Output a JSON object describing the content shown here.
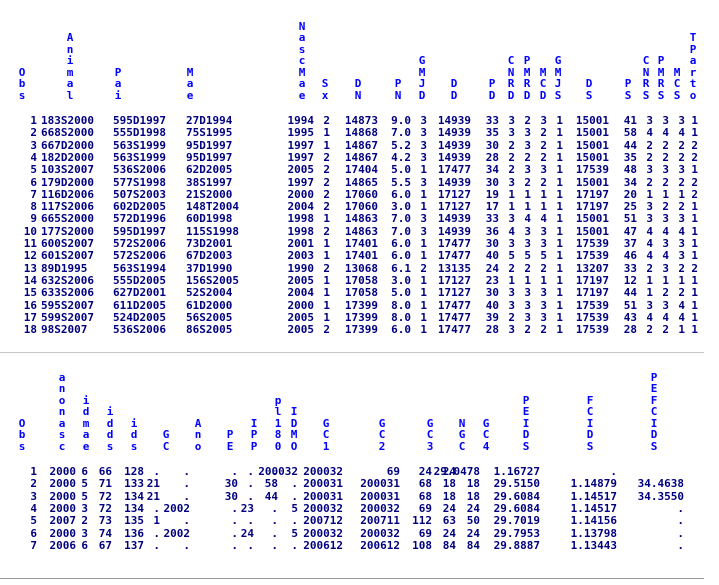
{
  "table1": {
    "headers": [
      "Obs",
      "Animal",
      "Pai",
      "Mae",
      "NascMae",
      "Sx",
      "DN",
      "PN",
      "GMJD",
      "DD",
      "PD",
      "CNRD",
      "PMRD",
      "MCD",
      "GMJS",
      "DS",
      "PS",
      "CNRS",
      "PMRS",
      "MCS",
      "TParto"
    ],
    "rows": [
      [
        "1",
        "183S2000",
        "595D1997",
        "27D1994",
        "1994",
        "2",
        "14873",
        "9.0",
        "3",
        "14939",
        "33",
        "3",
        "2",
        "3",
        "1",
        "15001",
        "41",
        "3",
        "3",
        "3",
        "1"
      ],
      [
        "2",
        "668S2000",
        "555D1998",
        "75S1995",
        "1995",
        "1",
        "14868",
        "7.0",
        "3",
        "14939",
        "35",
        "3",
        "3",
        "2",
        "1",
        "15001",
        "58",
        "4",
        "4",
        "4",
        "1"
      ],
      [
        "3",
        "667D2000",
        "563S1999",
        "95D1997",
        "1997",
        "1",
        "14867",
        "5.2",
        "3",
        "14939",
        "30",
        "2",
        "3",
        "2",
        "1",
        "15001",
        "44",
        "2",
        "2",
        "2",
        "2"
      ],
      [
        "4",
        "182D2000",
        "563S1999",
        "95D1997",
        "1997",
        "2",
        "14867",
        "4.2",
        "3",
        "14939",
        "28",
        "2",
        "2",
        "2",
        "1",
        "15001",
        "35",
        "2",
        "2",
        "2",
        "2"
      ],
      [
        "5",
        "103S2007",
        "536S2006",
        "62D2005",
        "2005",
        "2",
        "17404",
        "5.0",
        "1",
        "17477",
        "34",
        "2",
        "3",
        "3",
        "1",
        "17539",
        "48",
        "3",
        "3",
        "3",
        "1"
      ],
      [
        "6",
        "179D2000",
        "577S1998",
        "38S1997",
        "1997",
        "2",
        "14865",
        "5.5",
        "3",
        "14939",
        "30",
        "3",
        "2",
        "2",
        "1",
        "15001",
        "34",
        "2",
        "2",
        "2",
        "2"
      ],
      [
        "7",
        "116D2006",
        "507S2003",
        "21S2000",
        "2000",
        "2",
        "17060",
        "6.0",
        "1",
        "17127",
        "19",
        "1",
        "1",
        "1",
        "1",
        "17197",
        "20",
        "1",
        "1",
        "1",
        "2"
      ],
      [
        "8",
        "117S2006",
        "602D2005",
        "148T2004",
        "2004",
        "2",
        "17060",
        "3.0",
        "1",
        "17127",
        "17",
        "1",
        "1",
        "1",
        "1",
        "17197",
        "25",
        "3",
        "2",
        "2",
        "1"
      ],
      [
        "9",
        "665S2000",
        "572D1996",
        "60D1998",
        "1998",
        "1",
        "14863",
        "7.0",
        "3",
        "14939",
        "33",
        "3",
        "4",
        "4",
        "1",
        "15001",
        "51",
        "3",
        "3",
        "3",
        "1"
      ],
      [
        "10",
        "177S2000",
        "595D1997",
        "115S1998",
        "1998",
        "2",
        "14863",
        "7.0",
        "3",
        "14939",
        "36",
        "4",
        "3",
        "3",
        "1",
        "15001",
        "47",
        "4",
        "4",
        "4",
        "1"
      ],
      [
        "11",
        "600S2007",
        "572S2006",
        "73D2001",
        "2001",
        "1",
        "17401",
        "6.0",
        "1",
        "17477",
        "30",
        "3",
        "3",
        "3",
        "1",
        "17539",
        "37",
        "4",
        "3",
        "3",
        "1"
      ],
      [
        "12",
        "601S2007",
        "572S2006",
        "67D2003",
        "2003",
        "1",
        "17401",
        "6.0",
        "1",
        "17477",
        "40",
        "5",
        "5",
        "5",
        "1",
        "17539",
        "46",
        "4",
        "4",
        "3",
        "1"
      ],
      [
        "13",
        "89D1995",
        "563S1994",
        "37D1990",
        "1990",
        "2",
        "13068",
        "6.1",
        "2",
        "13135",
        "24",
        "2",
        "2",
        "2",
        "1",
        "13207",
        "33",
        "2",
        "3",
        "2",
        "2"
      ],
      [
        "14",
        "632S2006",
        "555D2005",
        "156S2005",
        "2005",
        "1",
        "17058",
        "3.0",
        "1",
        "17127",
        "23",
        "1",
        "1",
        "1",
        "1",
        "17197",
        "12",
        "1",
        "1",
        "1",
        "1"
      ],
      [
        "15",
        "633S2006",
        "627D2001",
        "52S2004",
        "2004",
        "1",
        "17058",
        "5.0",
        "1",
        "17127",
        "30",
        "3",
        "3",
        "3",
        "1",
        "17197",
        "44",
        "1",
        "2",
        "2",
        "1"
      ],
      [
        "16",
        "595S2007",
        "611D2005",
        "61D2000",
        "2000",
        "1",
        "17399",
        "8.0",
        "1",
        "17477",
        "40",
        "3",
        "3",
        "3",
        "1",
        "17539",
        "51",
        "3",
        "3",
        "4",
        "1"
      ],
      [
        "17",
        "599S2007",
        "524D2005",
        "56S2005",
        "2005",
        "1",
        "17399",
        "8.0",
        "1",
        "17477",
        "39",
        "2",
        "3",
        "3",
        "1",
        "17539",
        "43",
        "4",
        "4",
        "4",
        "1"
      ],
      [
        "18",
        "98S2007",
        "536S2006",
        "86S2005",
        "2005",
        "2",
        "17399",
        "6.0",
        "1",
        "17477",
        "28",
        "3",
        "2",
        "2",
        "1",
        "17539",
        "28",
        "2",
        "2",
        "1",
        "1"
      ]
    ]
  },
  "table2": {
    "headers": [
      "Obs",
      "anonasc",
      "idmae",
      "idds",
      "ids",
      "GC",
      "Ano",
      "PE",
      "IPP",
      "pl180",
      "IDMO",
      "GC1",
      "GC2",
      "GC3",
      "NGC",
      "GC4",
      "PEIDS",
      "FCIDS",
      "PEFCIDS"
    ],
    "rows": [
      [
        "1",
        "2000",
        "6",
        "66",
        "128",
        ".",
        ".",
        ".",
        ".",
        ".",
        "200032",
        "200032",
        "69",
        "24",
        "24",
        "29.0478",
        "1.16727",
        "."
      ],
      [
        "2",
        "2000",
        "5",
        "71",
        "133",
        "21",
        ".",
        "30",
        ".",
        "58",
        ".",
        "200031",
        "200031",
        "68",
        "18",
        "18",
        "29.5150",
        "1.14879",
        "34.4638"
      ],
      [
        "3",
        "2000",
        "5",
        "72",
        "134",
        "21",
        ".",
        "30",
        ".",
        "44",
        ".",
        "200031",
        "200031",
        "68",
        "18",
        "18",
        "29.6084",
        "1.14517",
        "34.3550"
      ],
      [
        "4",
        "2000",
        "3",
        "72",
        "134",
        ".",
        "2002",
        ".",
        "23",
        ".",
        "5",
        "200032",
        "200032",
        "69",
        "24",
        "24",
        "29.6084",
        "1.14517",
        "."
      ],
      [
        "5",
        "2007",
        "2",
        "73",
        "135",
        "1",
        ".",
        ".",
        ".",
        ".",
        ".",
        "200712",
        "200711",
        "112",
        "63",
        "50",
        "29.7019",
        "1.14156",
        "."
      ],
      [
        "6",
        "2000",
        "3",
        "74",
        "136",
        ".",
        "2002",
        ".",
        "24",
        ".",
        "5",
        "200032",
        "200032",
        "69",
        "24",
        "24",
        "29.7953",
        "1.13798",
        "."
      ],
      [
        "7",
        "2006",
        "6",
        "67",
        "137",
        ".",
        ".",
        ".",
        ".",
        ".",
        ".",
        "200612",
        "200612",
        "108",
        "84",
        "84",
        "29.8887",
        "1.13443",
        "."
      ]
    ]
  }
}
